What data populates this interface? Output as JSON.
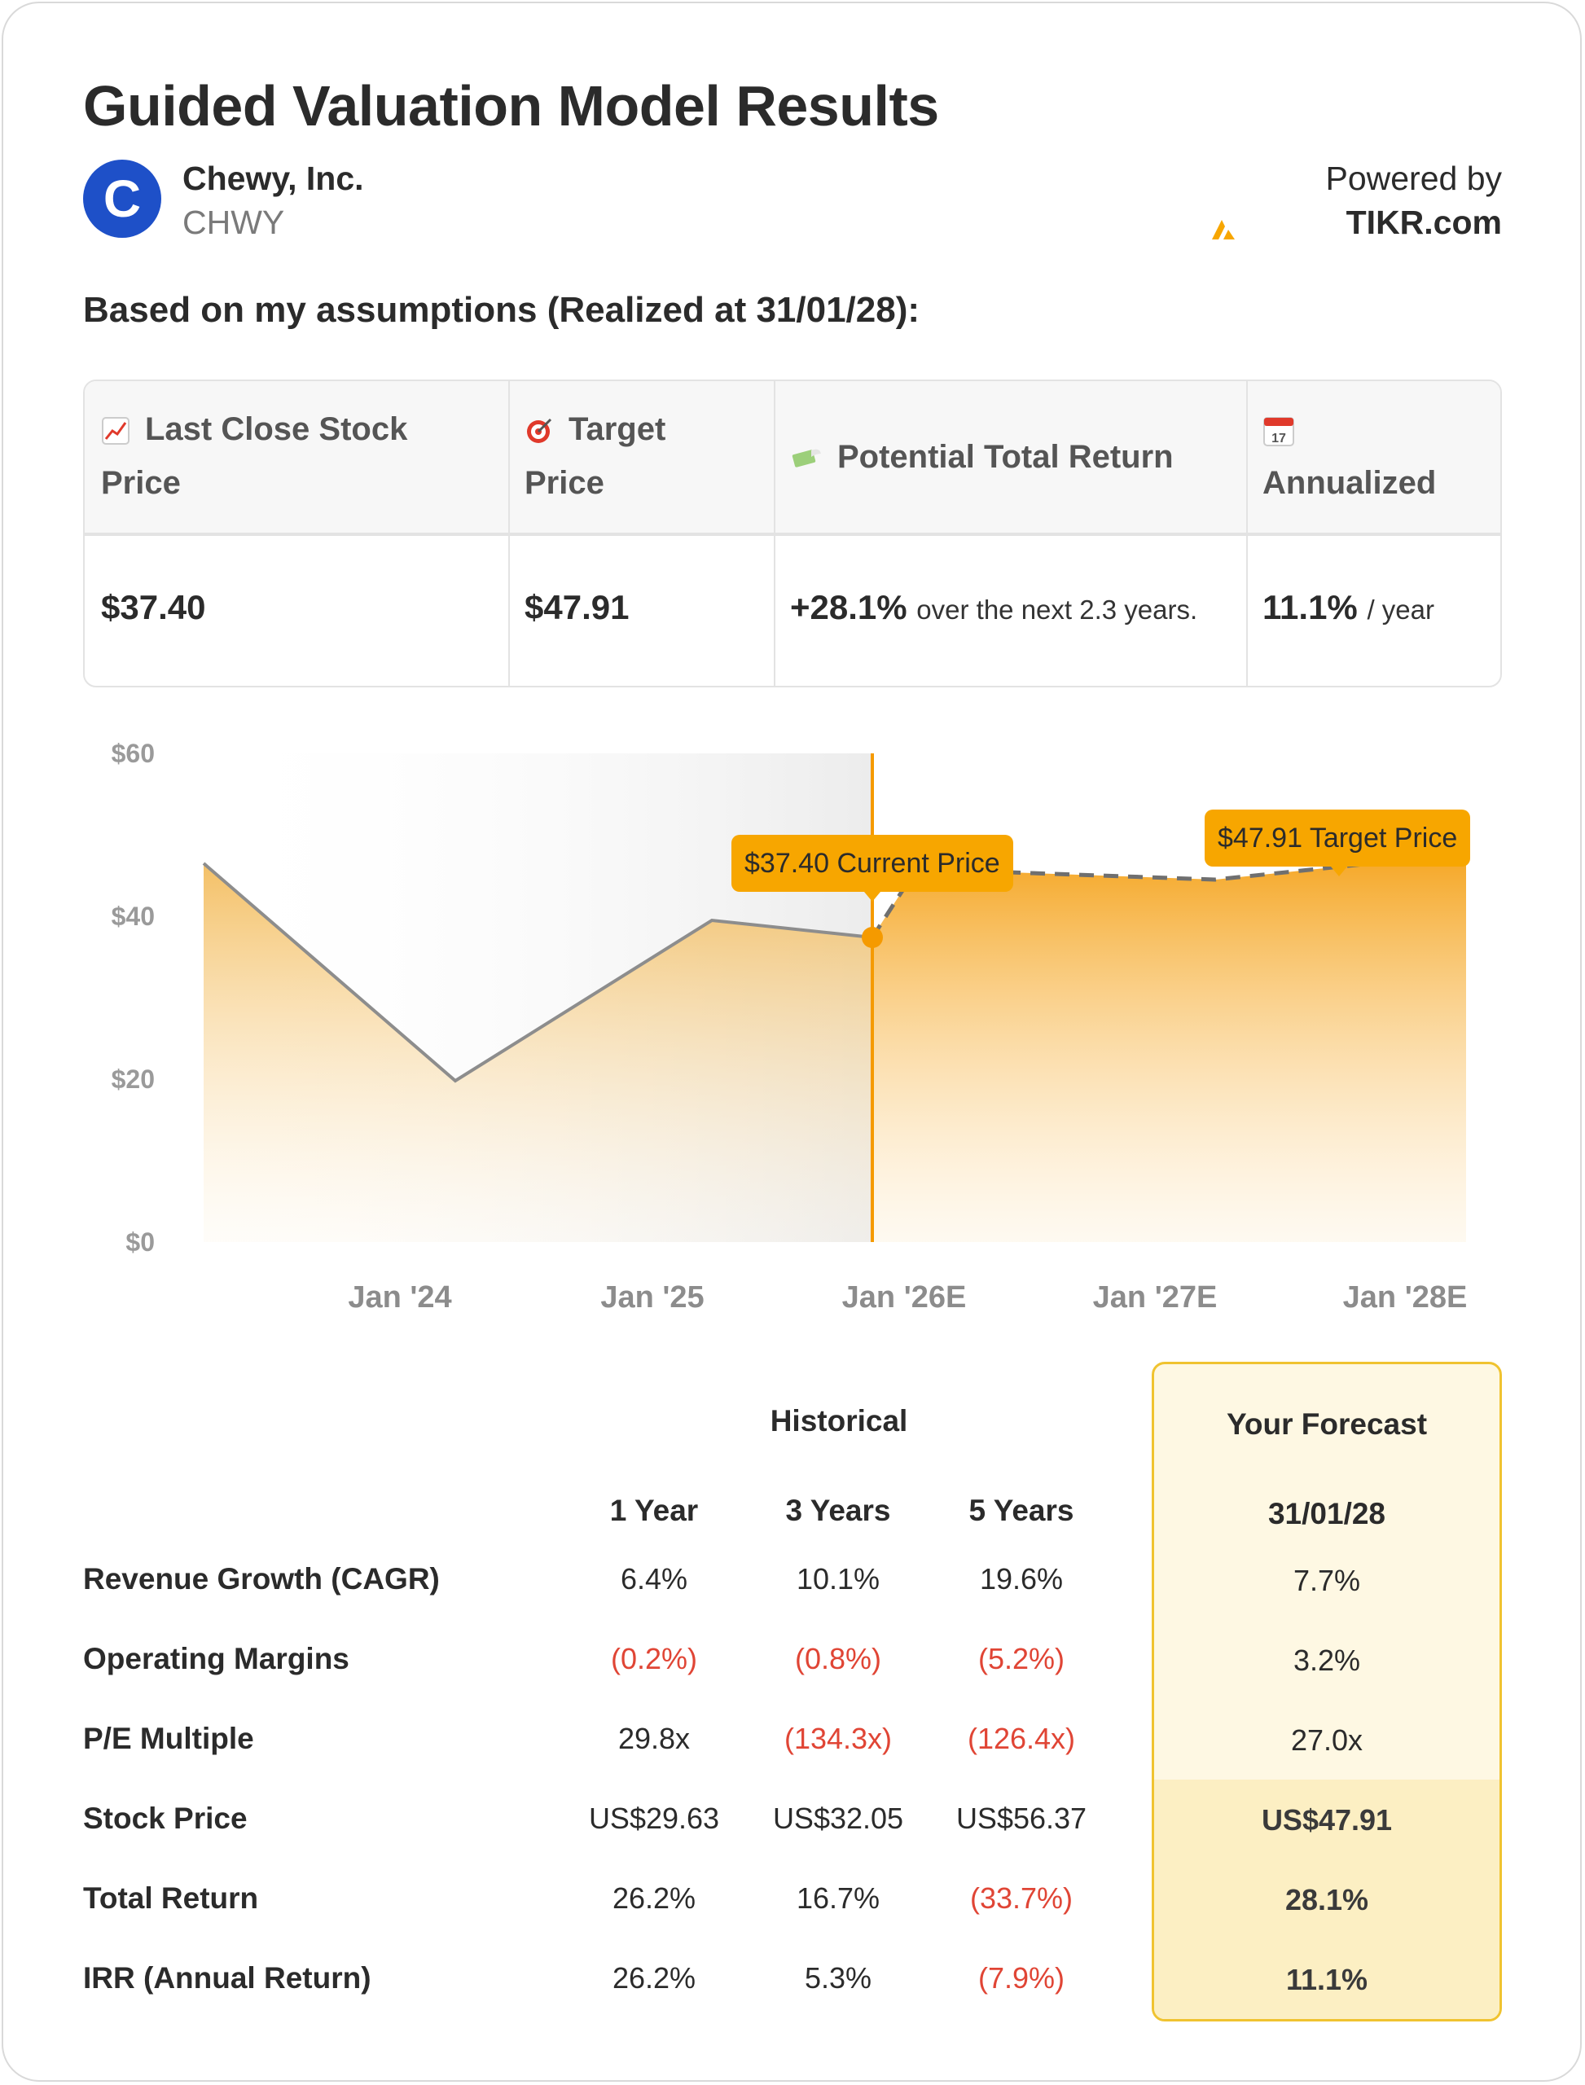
{
  "header": {
    "title": "Guided Valuation Model Results",
    "company_name": "Chewy, Inc.",
    "ticker": "CHWY",
    "logo_letter": "C",
    "powered_by": "Powered by",
    "brand": "TIKR.com",
    "assumptions_line": "Based on my assumptions (Realized at 31/01/28):"
  },
  "summary": {
    "headers": {
      "last_close_1": "Last Close Stock",
      "last_close_2": "Price",
      "target_1": "Target",
      "target_2": "Price",
      "potential": "Potential Total Return",
      "annualized": "Annualized"
    },
    "values": {
      "last_close": "$37.40",
      "target": "$47.91",
      "potential": "+28.1%",
      "potential_note": "over the next 2.3 years.",
      "annualized": "11.1%",
      "annualized_note": "/ year"
    },
    "icons": [
      "chart-increasing-icon",
      "target-icon",
      "money-with-wings-icon",
      "calendar-icon"
    ],
    "calendar_day": "17"
  },
  "chart_data": {
    "type": "area",
    "y_ticks": [
      "$60",
      "$40",
      "$20",
      "$0"
    ],
    "ylim": [
      0,
      60
    ],
    "x_ticks": [
      "Jan '24",
      "Jan '25",
      "Jan '26E",
      "Jan '27E",
      "Jan '28E"
    ],
    "series": [
      {
        "name": "historical",
        "x": [
          "Jan '23",
          "Jan '24",
          "Jan '25",
          "Jan '26E"
        ],
        "values": [
          46.5,
          19.8,
          39.5,
          37.4
        ]
      },
      {
        "name": "forecast",
        "x": [
          "Jan '26E",
          "Jan '27E",
          "Jan '28E"
        ],
        "values": [
          37.4,
          44.5,
          47.91
        ]
      }
    ],
    "annotations": {
      "current_label": "$37.40 Current Price",
      "target_label": "$47.91 Target Price"
    },
    "colors": {
      "accent": "#f7a600",
      "line": "#8a8a8a"
    }
  },
  "metrics": {
    "historical_label": "Historical",
    "forecast_label": "Your Forecast",
    "columns": [
      "1 Year",
      "3 Years",
      "5 Years"
    ],
    "forecast_date": "31/01/28",
    "rows": [
      {
        "label": "Revenue Growth (CAGR)",
        "values": [
          "6.4%",
          "10.1%",
          "19.6%"
        ],
        "forecast": "7.7%"
      },
      {
        "label": "Operating Margins",
        "values": [
          "(0.2%)",
          "(0.8%)",
          "(5.2%)"
        ],
        "forecast": "3.2%"
      },
      {
        "label": "P/E Multiple",
        "values": [
          "29.8x",
          "(134.3x)",
          "(126.4x)"
        ],
        "forecast": "27.0x"
      },
      {
        "label": "Stock Price",
        "values": [
          "US$29.63",
          "US$32.05",
          "US$56.37"
        ],
        "forecast": "US$47.91"
      },
      {
        "label": "Total Return",
        "values": [
          "26.2%",
          "16.7%",
          "(33.7%)"
        ],
        "forecast": "28.1%"
      },
      {
        "label": "IRR (Annual Return)",
        "values": [
          "26.2%",
          "5.3%",
          "(7.9%)"
        ],
        "forecast": "11.1%"
      }
    ]
  }
}
